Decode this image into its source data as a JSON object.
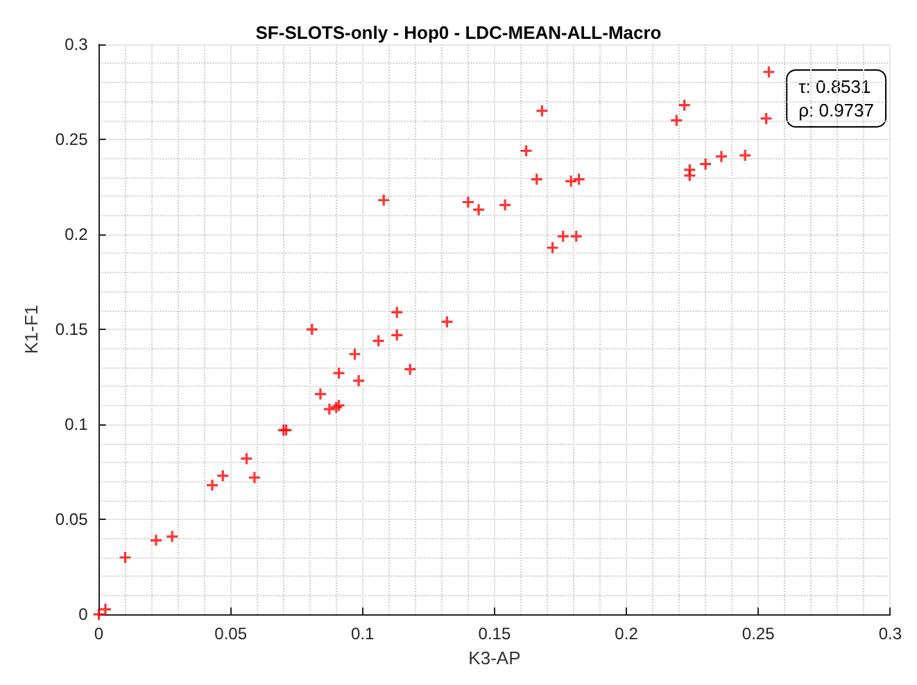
{
  "chart_data": {
    "type": "scatter",
    "title": "SF-SLOTS-only - Hop0 - LDC-MEAN-ALL-Macro",
    "xlabel": "K3-AP",
    "ylabel": "K1-F1",
    "x": [
      0,
      0.0025,
      0.01,
      0.0217,
      0.0278,
      0.043,
      0.047,
      0.056,
      0.059,
      0.07,
      0.071,
      0.0808,
      0.084,
      0.0874,
      0.09,
      0.091,
      0.091,
      0.097,
      0.0985,
      0.106,
      0.108,
      0.113,
      0.113,
      0.118,
      0.132,
      0.14,
      0.144,
      0.154,
      0.162,
      0.166,
      0.168,
      0.172,
      0.176,
      0.179,
      0.181,
      0.182,
      0.219,
      0.222,
      0.224,
      0.224,
      0.23,
      0.236,
      0.245,
      0.253,
      0.254
    ],
    "values": [
      0,
      0.0027,
      0.03,
      0.039,
      0.041,
      0.068,
      0.073,
      0.082,
      0.072,
      0.097,
      0.097,
      0.15,
      0.116,
      0.108,
      0.109,
      0.11,
      0.127,
      0.137,
      0.123,
      0.144,
      0.218,
      0.159,
      0.147,
      0.129,
      0.154,
      0.217,
      0.213,
      0.2155,
      0.244,
      0.229,
      0.265,
      0.193,
      0.199,
      0.228,
      0.199,
      0.229,
      0.26,
      0.268,
      0.234,
      0.231,
      0.237,
      0.241,
      0.2416,
      0.261,
      0.2855
    ],
    "color": "#ff0000",
    "marker": "cross",
    "grid": true,
    "xlim": [
      0,
      0.3
    ],
    "xticks": [
      0,
      0.05,
      0.1,
      0.15,
      0.2,
      0.25,
      0.3
    ],
    "ylim": [
      0,
      0.3
    ],
    "yticks": [
      0,
      0.05,
      0.1,
      0.15,
      0.2,
      0.25,
      0.3
    ],
    "annotations": [
      "τ: 0.8531",
      "ρ: 0.9737"
    ]
  }
}
